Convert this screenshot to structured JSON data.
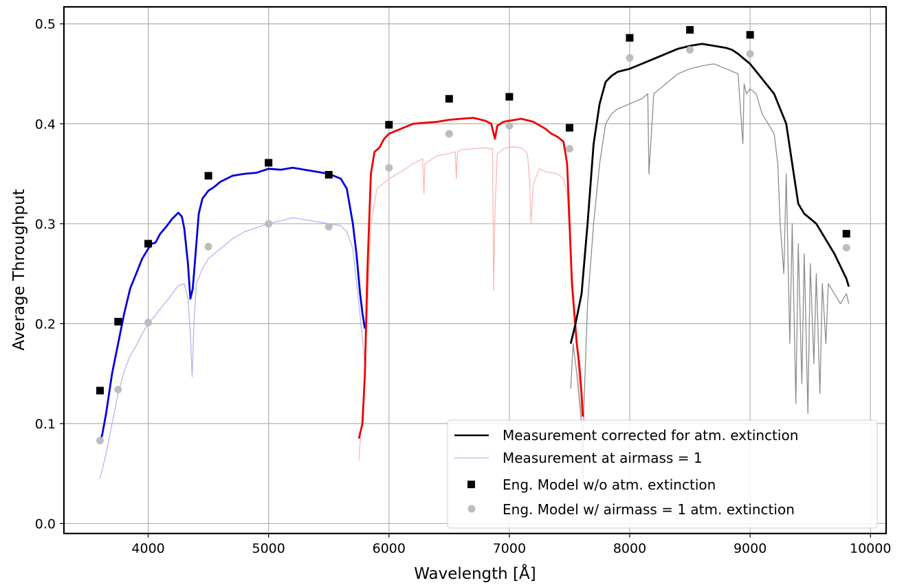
{
  "chart_data": {
    "type": "line",
    "title": "",
    "xlabel": "Wavelength [Å]",
    "ylabel": "Average Throughput",
    "xlim": [
      3300,
      10130
    ],
    "ylim": [
      -0.01,
      0.517
    ],
    "xticks": [
      4000,
      5000,
      6000,
      7000,
      8000,
      9000,
      10000
    ],
    "xtick_labels": [
      "4000",
      "5000",
      "6000",
      "7000",
      "8000",
      "9000",
      "10000"
    ],
    "yticks": [
      0.0,
      0.1,
      0.2,
      0.3,
      0.4,
      0.5
    ],
    "ytick_labels": [
      "0.0",
      "0.1",
      "0.2",
      "0.3",
      "0.4",
      "0.5"
    ],
    "grid": true,
    "legend_position": "bottom-right",
    "legend": [
      "Measurement corrected for atm. extinction",
      "Measurement at airmass = 1",
      "Eng. Model w/o atm. extinction",
      "Eng. Model w/ airmass = 1 atm. extinction"
    ],
    "colors": {
      "blue": "#0000dd",
      "blue_light": "#b3b3f0",
      "red": "#ee0000",
      "red_light": "#f7b8b8",
      "black": "#000000",
      "gray": "#8c8c8c",
      "model_marker": "#000000",
      "airmass_marker": "#bdbdbd"
    },
    "series": [
      {
        "band": "blue",
        "style": "corrected",
        "x": [
          3600,
          3620,
          3650,
          3700,
          3750,
          3800,
          3850,
          3900,
          3950,
          4000,
          4030,
          4060,
          4100,
          4150,
          4200,
          4250,
          4280,
          4300,
          4330,
          4350,
          4370,
          4390,
          4420,
          4450,
          4500,
          4550,
          4600,
          4700,
          4800,
          4900,
          5000,
          5100,
          5200,
          5300,
          5400,
          5500,
          5600,
          5650,
          5700,
          5730,
          5760,
          5780,
          5800
        ],
        "y": [
          0.08,
          0.09,
          0.11,
          0.15,
          0.18,
          0.21,
          0.235,
          0.25,
          0.265,
          0.275,
          0.28,
          0.281,
          0.29,
          0.297,
          0.305,
          0.311,
          0.307,
          0.295,
          0.26,
          0.225,
          0.235,
          0.265,
          0.31,
          0.325,
          0.333,
          0.337,
          0.342,
          0.348,
          0.35,
          0.351,
          0.355,
          0.354,
          0.356,
          0.354,
          0.352,
          0.35,
          0.345,
          0.335,
          0.3,
          0.27,
          0.23,
          0.21,
          0.195
        ]
      },
      {
        "band": "blue",
        "style": "airmass",
        "x": [
          3600,
          3650,
          3700,
          3750,
          3800,
          3850,
          3900,
          3950,
          4000,
          4050,
          4100,
          4150,
          4200,
          4250,
          4300,
          4330,
          4350,
          4365,
          4380,
          4400,
          4450,
          4500,
          4600,
          4700,
          4800,
          4900,
          5000,
          5100,
          5200,
          5300,
          5400,
          5500,
          5600,
          5650,
          5700,
          5750,
          5800
        ],
        "y": [
          0.045,
          0.07,
          0.1,
          0.13,
          0.152,
          0.168,
          0.178,
          0.19,
          0.2,
          0.207,
          0.215,
          0.222,
          0.23,
          0.238,
          0.24,
          0.225,
          0.19,
          0.147,
          0.2,
          0.24,
          0.255,
          0.265,
          0.275,
          0.285,
          0.292,
          0.296,
          0.3,
          0.303,
          0.306,
          0.304,
          0.302,
          0.3,
          0.298,
          0.292,
          0.275,
          0.22,
          0.16
        ]
      },
      {
        "band": "red",
        "style": "corrected",
        "x": [
          5750,
          5780,
          5800,
          5820,
          5850,
          5880,
          5920,
          5960,
          6000,
          6100,
          6200,
          6300,
          6400,
          6500,
          6600,
          6700,
          6800,
          6850,
          6870,
          6880,
          6900,
          6950,
          7000,
          7100,
          7200,
          7300,
          7350,
          7400,
          7450,
          7480,
          7500,
          7520,
          7540,
          7560,
          7580,
          7600,
          7610
        ],
        "y": [
          0.085,
          0.1,
          0.15,
          0.25,
          0.35,
          0.372,
          0.376,
          0.385,
          0.39,
          0.395,
          0.4,
          0.401,
          0.402,
          0.404,
          0.405,
          0.406,
          0.403,
          0.4,
          0.39,
          0.385,
          0.398,
          0.402,
          0.403,
          0.405,
          0.402,
          0.395,
          0.39,
          0.387,
          0.382,
          0.36,
          0.3,
          0.24,
          0.21,
          0.18,
          0.16,
          0.13,
          0.107
        ]
      },
      {
        "band": "red",
        "style": "airmass",
        "x": [
          5750,
          5800,
          5850,
          5900,
          6000,
          6100,
          6200,
          6280,
          6290,
          6300,
          6400,
          6500,
          6550,
          6560,
          6570,
          6600,
          6700,
          6800,
          6860,
          6870,
          6880,
          6900,
          6950,
          7000,
          7100,
          7150,
          7170,
          7180,
          7200,
          7250,
          7300,
          7400,
          7450,
          7480,
          7500,
          7550,
          7600
        ],
        "y": [
          0.063,
          0.15,
          0.3,
          0.335,
          0.345,
          0.352,
          0.36,
          0.365,
          0.33,
          0.36,
          0.368,
          0.37,
          0.372,
          0.345,
          0.372,
          0.374,
          0.375,
          0.376,
          0.375,
          0.233,
          0.31,
          0.37,
          0.375,
          0.377,
          0.376,
          0.37,
          0.34,
          0.3,
          0.34,
          0.355,
          0.352,
          0.35,
          0.345,
          0.33,
          0.29,
          0.2,
          0.1
        ]
      },
      {
        "band": "nir",
        "style": "corrected",
        "x": [
          7510,
          7550,
          7600,
          7650,
          7700,
          7750,
          7800,
          7850,
          7900,
          8000,
          8100,
          8200,
          8300,
          8400,
          8500,
          8600,
          8700,
          8800,
          8850,
          8900,
          9000,
          9100,
          9200,
          9250,
          9300,
          9350,
          9400,
          9450,
          9500,
          9550,
          9600,
          9700,
          9800,
          9820
        ],
        "y": [
          0.18,
          0.2,
          0.23,
          0.3,
          0.38,
          0.42,
          0.442,
          0.448,
          0.452,
          0.455,
          0.46,
          0.465,
          0.47,
          0.475,
          0.478,
          0.48,
          0.478,
          0.476,
          0.474,
          0.47,
          0.46,
          0.445,
          0.43,
          0.415,
          0.4,
          0.36,
          0.32,
          0.31,
          0.305,
          0.3,
          0.29,
          0.27,
          0.245,
          0.237
        ]
      },
      {
        "band": "nir",
        "style": "airmass",
        "x": [
          7510,
          7530,
          7560,
          7600,
          7610,
          7620,
          7650,
          7700,
          7750,
          7800,
          7850,
          7900,
          8000,
          8100,
          8150,
          8160,
          8200,
          8300,
          8400,
          8500,
          8600,
          8700,
          8800,
          8900,
          8940,
          8950,
          8970,
          9000,
          9050,
          9100,
          9150,
          9200,
          9230,
          9250,
          9280,
          9300,
          9330,
          9350,
          9380,
          9400,
          9430,
          9450,
          9480,
          9500,
          9530,
          9550,
          9580,
          9600,
          9630,
          9650,
          9700,
          9750,
          9800,
          9820
        ],
        "y": [
          0.135,
          0.18,
          0.15,
          0.1,
          0.04,
          0.12,
          0.22,
          0.3,
          0.36,
          0.4,
          0.41,
          0.415,
          0.42,
          0.425,
          0.43,
          0.35,
          0.43,
          0.44,
          0.45,
          0.455,
          0.458,
          0.46,
          0.455,
          0.45,
          0.38,
          0.44,
          0.43,
          0.435,
          0.43,
          0.41,
          0.4,
          0.39,
          0.36,
          0.3,
          0.25,
          0.35,
          0.18,
          0.3,
          0.12,
          0.28,
          0.14,
          0.27,
          0.11,
          0.26,
          0.16,
          0.25,
          0.13,
          0.24,
          0.18,
          0.24,
          0.23,
          0.22,
          0.23,
          0.22
        ]
      }
    ],
    "markers": [
      {
        "name": "Eng. Model w/o atm. extinction",
        "shape": "square",
        "x": [
          3600,
          3750,
          4000,
          4500,
          5000,
          5500,
          6000,
          6500,
          7000,
          7500,
          8000,
          8500,
          9000,
          9800
        ],
        "y": [
          0.133,
          0.202,
          0.28,
          0.348,
          0.361,
          0.349,
          0.399,
          0.425,
          0.427,
          0.396,
          0.486,
          0.494,
          0.489,
          0.29
        ]
      },
      {
        "name": "Eng. Model w/ airmass = 1 atm. extinction",
        "shape": "circle",
        "x": [
          3600,
          3750,
          4000,
          4500,
          5000,
          5500,
          6000,
          6500,
          7000,
          7500,
          8000,
          8500,
          9000,
          9800
        ],
        "y": [
          0.083,
          0.134,
          0.201,
          0.277,
          0.3,
          0.297,
          0.356,
          0.39,
          0.398,
          0.375,
          0.466,
          0.474,
          0.47,
          0.276
        ]
      }
    ]
  }
}
